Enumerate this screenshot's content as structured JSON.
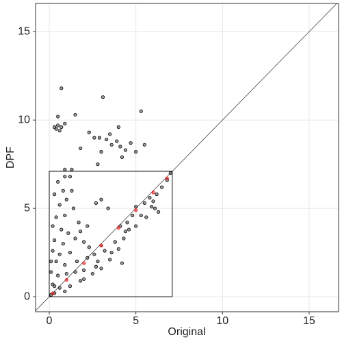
{
  "chart_data": {
    "type": "scatter",
    "x_label": "Original",
    "y_label": "DPF",
    "xlim": [
      -0.79,
      16.7
    ],
    "ylim": [
      -0.85,
      16.6
    ],
    "xticks": [
      0,
      5,
      10,
      15
    ],
    "yticks": [
      0,
      5,
      10,
      15
    ],
    "grid": true,
    "reference_line": {
      "slope": 1,
      "intercept": 0
    },
    "box": {
      "x": [
        0,
        7.1
      ],
      "y": [
        0,
        7.1
      ]
    },
    "series": [
      {
        "color": "#555555",
        "x": [
          0.7,
          3.1,
          5.3,
          1.5,
          0.4,
          0.5,
          0.6,
          0.7,
          0.3,
          0.9,
          0.5,
          2.3,
          2.6,
          2.9,
          3.3,
          3.6,
          3.9,
          4.1,
          4.4,
          4.7,
          5.0,
          5.5,
          4.0,
          3.5,
          4.2,
          3.0,
          2.8,
          1.8,
          0.9,
          1.2,
          1.3,
          0.5,
          0.8,
          1.0,
          0.3,
          0.6,
          1.4,
          0.4,
          0.9,
          1.7,
          0.2,
          0.7,
          1.1,
          0.3,
          0.8,
          1.5,
          2.0,
          0.2,
          0.6,
          1.2,
          2.3,
          0.4,
          0.9,
          1.6,
          0.1,
          0.5,
          1.0,
          2.0,
          0.2,
          0.6,
          1.2,
          0.3,
          0.9,
          1.8,
          2.5,
          3.0,
          3.5,
          2.8,
          3.2,
          4.0,
          3.8,
          4.3,
          4.6,
          5.0,
          4.5,
          5.3,
          5.6,
          5.0,
          5.5,
          6.0,
          6.2,
          6.5,
          6.8,
          7.0,
          5.9,
          6.3,
          6.1,
          2.6,
          2.2,
          1.5,
          3.0,
          4.1,
          3.4,
          2.2,
          2.7,
          3.0,
          1.8,
          4.8,
          2.0,
          2.7,
          3.6,
          4.4,
          5.8,
          0.1,
          0.3,
          0.1,
          1.3,
          0.9,
          4.2
        ],
        "y": [
          11.8,
          11.3,
          10.5,
          10.3,
          9.5,
          9.7,
          9.4,
          9.6,
          9.6,
          9.8,
          10.2,
          9.3,
          9.0,
          9.0,
          8.9,
          8.6,
          8.8,
          8.5,
          8.3,
          8.7,
          8.2,
          8.6,
          9.6,
          9.2,
          7.9,
          8.2,
          7.5,
          8.4,
          7.2,
          6.8,
          7.2,
          6.5,
          6.0,
          5.5,
          5.8,
          5.2,
          5.0,
          4.5,
          4.6,
          4.2,
          4.0,
          3.8,
          3.6,
          3.2,
          3.0,
          3.3,
          3.1,
          2.6,
          2.4,
          2.5,
          2.8,
          2.0,
          1.8,
          2.0,
          1.4,
          1.2,
          1.3,
          1.5,
          0.7,
          0.5,
          0.6,
          0.2,
          0.3,
          0.9,
          1.3,
          1.6,
          2.1,
          2.0,
          2.6,
          2.7,
          3.1,
          3.3,
          3.8,
          4.0,
          4.2,
          4.6,
          4.5,
          5.1,
          5.3,
          5.4,
          5.8,
          6.2,
          6.6,
          7.0,
          5.1,
          4.8,
          5.0,
          2.4,
          2.2,
          1.4,
          2.9,
          4.0,
          5.0,
          4.0,
          5.3,
          5.5,
          3.7,
          4.6,
          1.0,
          1.7,
          2.5,
          3.7,
          5.6,
          0.1,
          0.6,
          2.0,
          6.0,
          6.8,
          1.9
        ]
      },
      {
        "color": "#e41a1c",
        "x": [
          0.2,
          1,
          2,
          3,
          4,
          5,
          6,
          6.8
        ],
        "y": [
          0.2,
          0.95,
          1.9,
          2.9,
          3.9,
          4.9,
          5.9,
          6.7
        ]
      }
    ]
  }
}
